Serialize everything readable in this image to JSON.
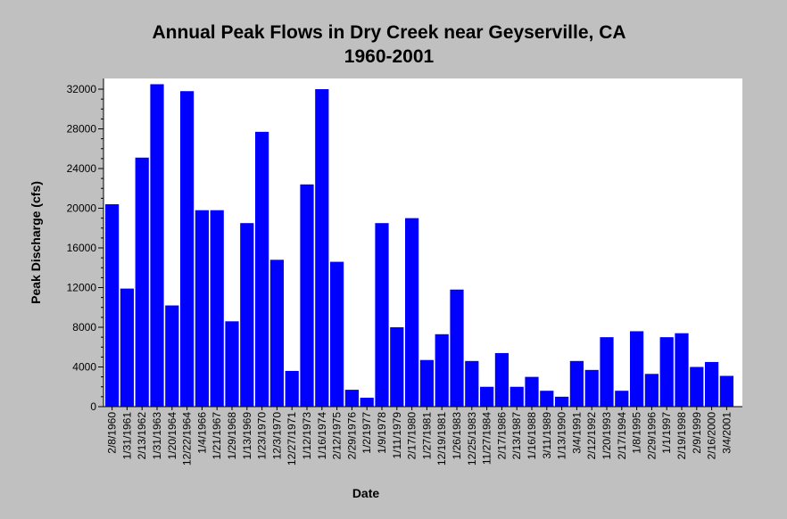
{
  "chart_data": {
    "type": "bar",
    "title": "Annual Peak Flows in Dry Creek near Geyserville, CA",
    "subtitle": "1960-2001",
    "xlabel": "Date",
    "ylabel": "Peak Discharge (cfs)",
    "ylim": [
      0,
      32000
    ],
    "yticks": [
      0,
      4000,
      8000,
      12000,
      16000,
      20000,
      24000,
      28000,
      32000
    ],
    "grid": false,
    "legend": "none",
    "colors": {
      "bar": "#0000ff",
      "plot_background": "#ffffff",
      "figure_background": "#c0c0c0"
    },
    "categories": [
      "2/8/1960",
      "1/31/1961",
      "2/13/1962",
      "1/31/1963",
      "1/20/1964",
      "12/22/1964",
      "1/4/1966",
      "1/21/1967",
      "1/29/1968",
      "1/13/1969",
      "1/23/1970",
      "12/3/1970",
      "12/27/1971",
      "1/12/1973",
      "1/16/1974",
      "2/12/1975",
      "2/29/1976",
      "1/2/1977",
      "1/9/1978",
      "1/11/1979",
      "2/17/1980",
      "1/27/1981",
      "12/19/1981",
      "1/26/1983",
      "12/25/1983",
      "11/27/1984",
      "2/17/1986",
      "2/13/1987",
      "1/16/1988",
      "3/11/1989",
      "1/13/1990",
      "3/4/1991",
      "2/12/1992",
      "1/20/1993",
      "2/17/1994",
      "1/8/1995",
      "2/29/1996",
      "1/1/1997",
      "2/19/1998",
      "2/9/1999",
      "2/16/2000",
      "3/4/2001"
    ],
    "values": [
      20400,
      11900,
      25100,
      32500,
      10200,
      31800,
      19800,
      19800,
      8600,
      18500,
      27700,
      14800,
      3600,
      22400,
      32000,
      14600,
      1700,
      900,
      18500,
      8000,
      19000,
      4700,
      7300,
      11800,
      4600,
      2000,
      5400,
      2000,
      3000,
      1600,
      1000,
      4600,
      3700,
      7000,
      1600,
      7600,
      3300,
      7000,
      7400,
      4000,
      4500,
      3100
    ]
  }
}
